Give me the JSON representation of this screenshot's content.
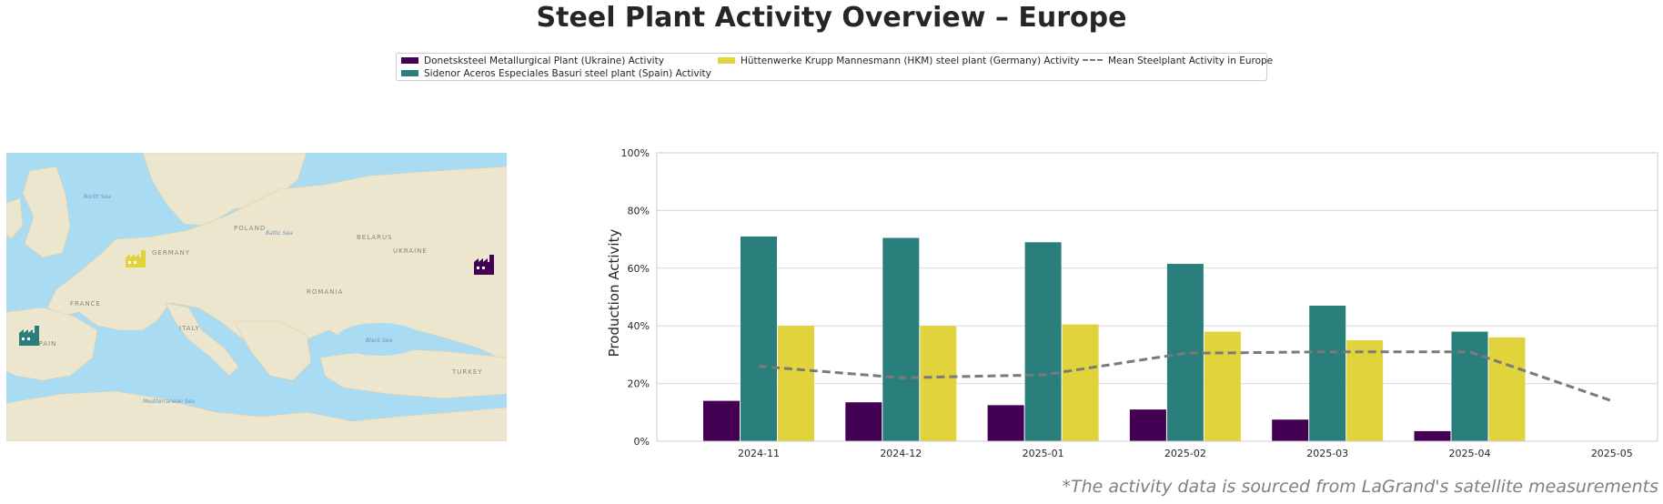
{
  "title": "Steel Plant Activity Overview – Europe",
  "footnote": "*The activity data is sourced from LaGrand's satellite measurements",
  "legend": {
    "items": [
      {
        "label": "Donetsksteel Metallurgical Plant (Ukraine) Activity",
        "color": "#440154"
      },
      {
        "label": "Sidenor Aceros Especiales Basuri steel plant (Spain) Activity",
        "color": "#2a7f7c"
      },
      {
        "label": "Hüttenwerke Krupp Mannesmann (HKM) steel plant (Germany) Activity",
        "color": "#e0d33b"
      },
      {
        "label": "Mean Steelplant Activity in Europe",
        "color": "#7a7a7a"
      }
    ]
  },
  "map": {
    "water_color": "#a9dcf2",
    "land_color": "#ede6cf",
    "seas": [
      "North Sea",
      "Baltic Sea",
      "Black Sea",
      "Mediterranean Sea"
    ],
    "countries": [
      "UKRAINE",
      "FRANCE",
      "SPAIN",
      "GERMANY",
      "POLAND",
      "ROMANIA",
      "TURKEY",
      "ITALY",
      "BELARUS"
    ],
    "markers": [
      {
        "plant": "Donetsksteel",
        "icon": "factory-icon",
        "color": "#440154"
      },
      {
        "plant": "Sidenor",
        "icon": "factory-icon",
        "color": "#2a7f7c"
      },
      {
        "plant": "HKM",
        "icon": "factory-icon",
        "color": "#e0d33b"
      }
    ]
  },
  "chart_data": {
    "type": "bar",
    "categories": [
      "2024-11",
      "2024-12",
      "2025-01",
      "2025-02",
      "2025-03",
      "2025-04",
      "2025-05"
    ],
    "series": [
      {
        "name": "Donetsksteel Metallurgical Plant (Ukraine) Activity",
        "type": "bar",
        "color": "#440154",
        "values": [
          14,
          13.5,
          12.5,
          11,
          7.5,
          3.5,
          null
        ]
      },
      {
        "name": "Sidenor Aceros Especiales Basuri steel plant (Spain) Activity",
        "type": "bar",
        "color": "#2a7f7c",
        "values": [
          71,
          70.5,
          69,
          61.5,
          47,
          38,
          null
        ]
      },
      {
        "name": "Hüttenwerke Krupp Mannesmann (HKM) steel plant (Germany) Activity",
        "type": "bar",
        "color": "#e0d33b",
        "values": [
          40,
          40,
          40.5,
          38,
          35,
          36,
          null
        ]
      },
      {
        "name": "Mean Steelplant Activity in Europe",
        "type": "line",
        "style": "dashed",
        "color": "#7a7a7a",
        "values": [
          26,
          22,
          23,
          30.5,
          31,
          31,
          14
        ]
      }
    ],
    "ylabel": "Production Activity",
    "xlabel": "",
    "ylim": [
      0,
      100
    ],
    "yticks": [
      "0%",
      "20%",
      "40%",
      "60%",
      "80%",
      "100%"
    ],
    "grid": true
  }
}
